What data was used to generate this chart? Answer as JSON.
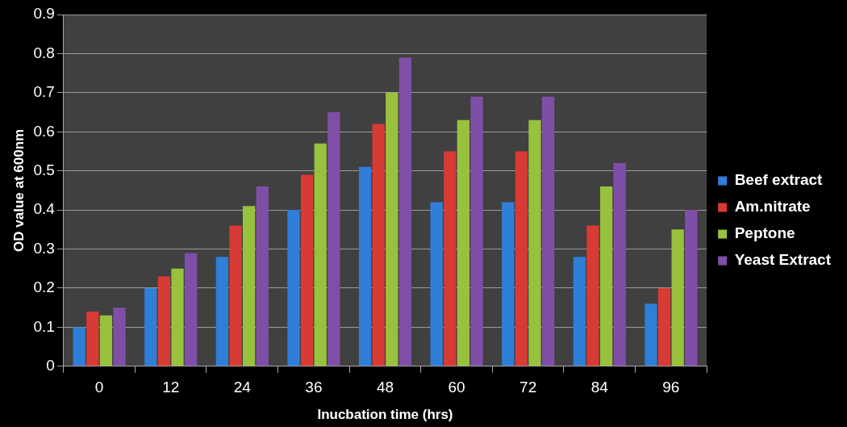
{
  "chart_data": {
    "type": "bar",
    "xlabel": "Inucbation time (hrs)",
    "ylabel": "OD value at 600nm",
    "categories": [
      "0",
      "12",
      "24",
      "36",
      "48",
      "60",
      "72",
      "84",
      "96"
    ],
    "series": [
      {
        "name": "Beef extract",
        "color": "#2f7ed8",
        "values": [
          0.1,
          0.2,
          0.28,
          0.4,
          0.51,
          0.42,
          0.42,
          0.28,
          0.16
        ]
      },
      {
        "name": "Am.nitrate",
        "color": "#d83a35",
        "values": [
          0.14,
          0.23,
          0.36,
          0.49,
          0.62,
          0.55,
          0.55,
          0.36,
          0.2
        ]
      },
      {
        "name": "Peptone",
        "color": "#98c13d",
        "values": [
          0.13,
          0.25,
          0.41,
          0.57,
          0.7,
          0.63,
          0.63,
          0.46,
          0.35
        ]
      },
      {
        "name": "Yeast Extract",
        "color": "#7f4fa8",
        "values": [
          0.15,
          0.29,
          0.46,
          0.65,
          0.79,
          0.69,
          0.69,
          0.52,
          0.4
        ]
      }
    ],
    "ylim": [
      0,
      0.9
    ],
    "yticks": [
      0,
      0.1,
      0.2,
      0.3,
      0.4,
      0.5,
      0.6,
      0.7,
      0.8,
      0.9
    ],
    "grid": "y",
    "legend": "right"
  }
}
